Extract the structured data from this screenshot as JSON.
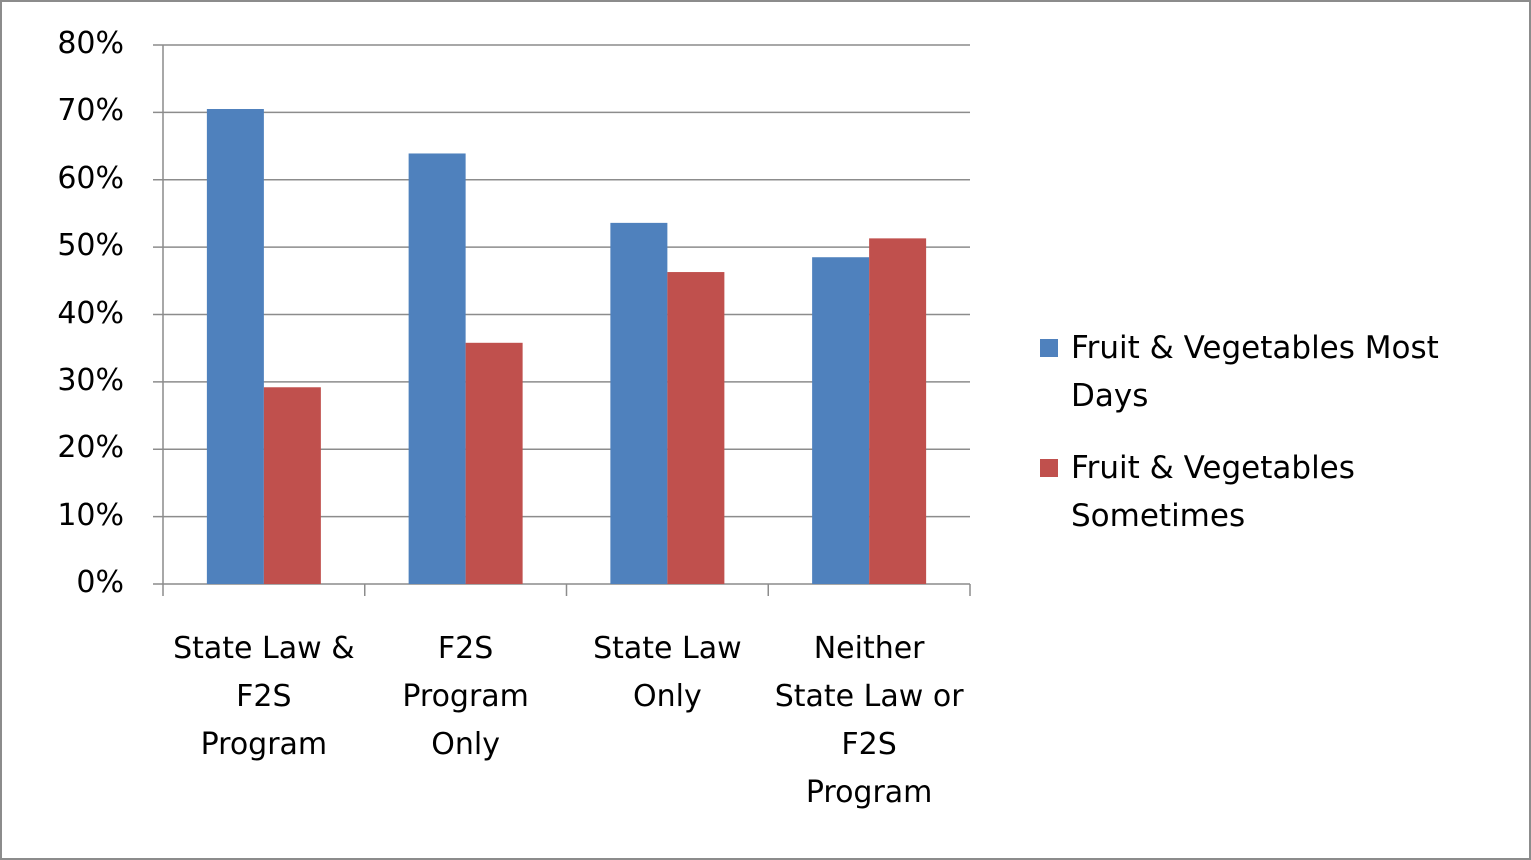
{
  "chart_data": {
    "type": "bar",
    "categories": [
      "State Law & F2S Program",
      "F2S Program Only",
      "State Law Only",
      "Neither State Law or F2S Program"
    ],
    "series": [
      {
        "name": "Fruit & Vegetables Most Days",
        "color": "#4f81bd",
        "values": [
          70.5,
          63.9,
          53.6,
          48.5
        ]
      },
      {
        "name": "Fruit & Vegetables Sometimes",
        "color": "#c0504d",
        "values": [
          29.2,
          35.8,
          46.3,
          51.3
        ]
      }
    ],
    "ylim": [
      0,
      80
    ],
    "yticks": [
      {
        "value": 0,
        "label": "0%"
      },
      {
        "value": 10,
        "label": "10%"
      },
      {
        "value": 20,
        "label": "20%"
      },
      {
        "value": 30,
        "label": "30%"
      },
      {
        "value": 40,
        "label": "40%"
      },
      {
        "value": 50,
        "label": "50%"
      },
      {
        "value": 60,
        "label": "60%"
      },
      {
        "value": 70,
        "label": "70%"
      },
      {
        "value": 80,
        "label": "80%"
      }
    ],
    "grid": true,
    "legend": "right"
  }
}
